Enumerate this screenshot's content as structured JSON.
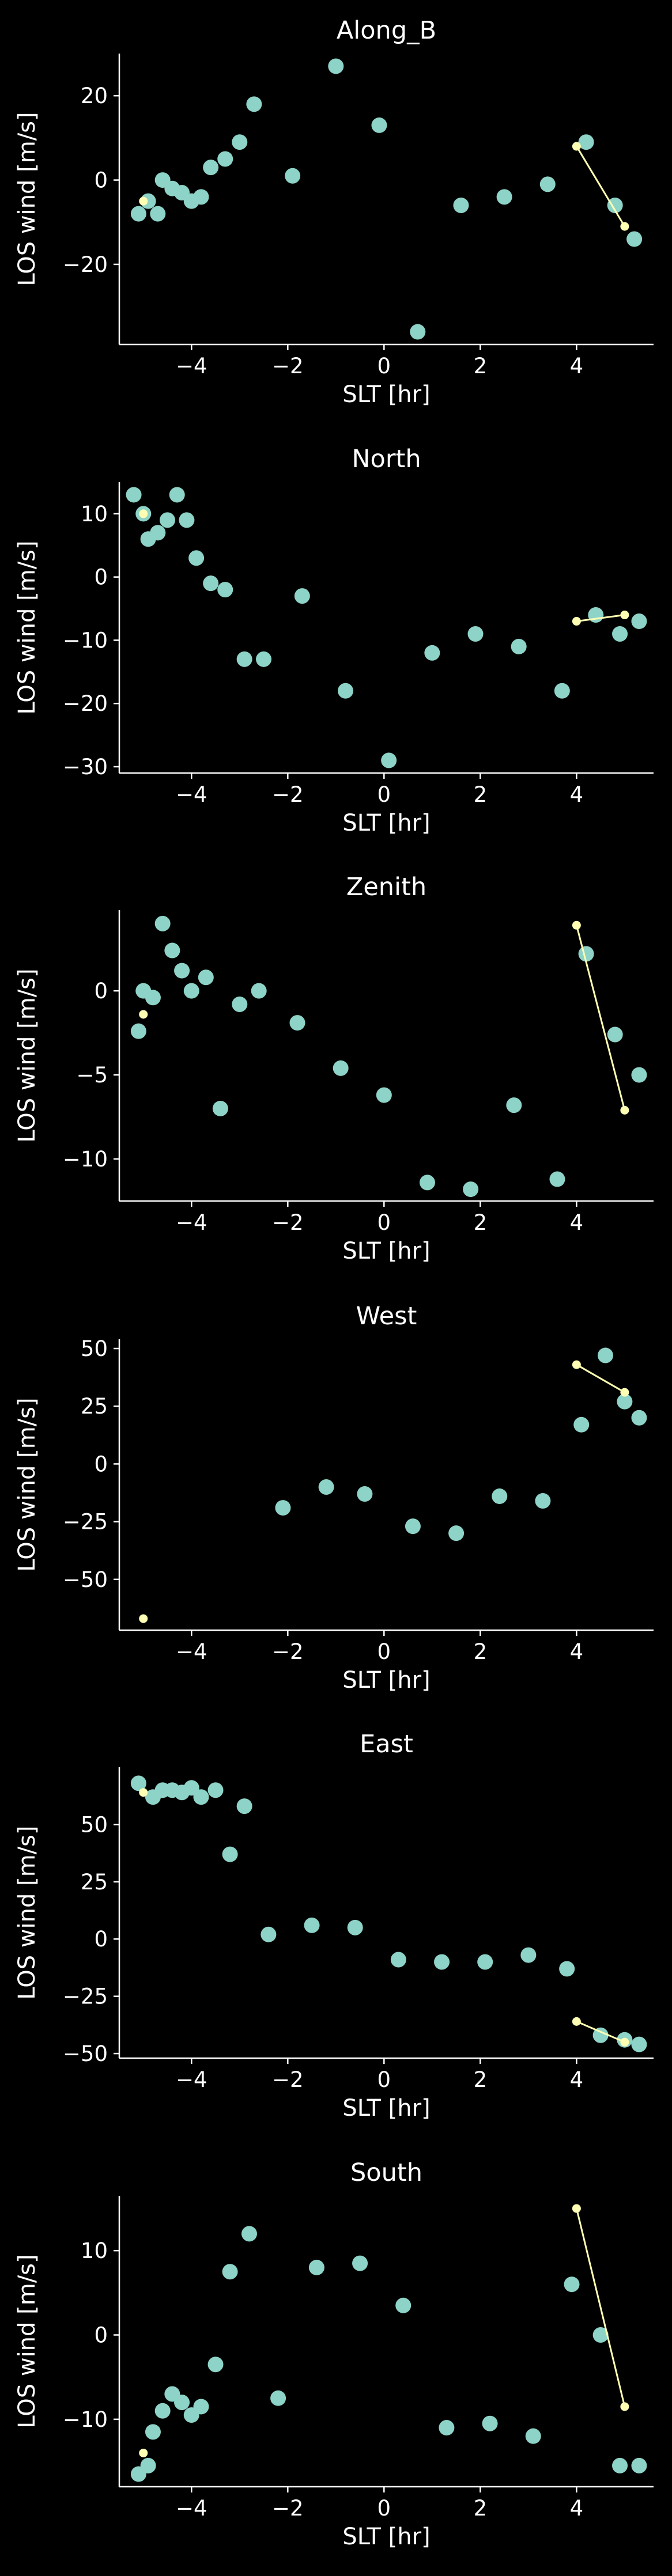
{
  "figure": {
    "background": "#000000",
    "foreground": "#ffffff",
    "scatter_color": "#8dd3c7",
    "line_color": "#ffffb3"
  },
  "chart_data": [
    {
      "type": "scatter",
      "title": "Along_B",
      "xlabel": "SLT [hr]",
      "ylabel": "LOS wind [m/s]",
      "xlim": [
        -5.5,
        5.6
      ],
      "ylim": [
        -39,
        30
      ],
      "xticks": [
        -4,
        -2,
        0,
        2,
        4
      ],
      "yticks": [
        -20,
        0,
        20
      ],
      "grid": false,
      "series": [
        {
          "kind": "scatter",
          "x": [
            -5.1,
            -4.9,
            -4.7,
            -4.6,
            -4.4,
            -4.2,
            -4.0,
            -3.8,
            -3.6,
            -3.3,
            -3.0,
            -2.7,
            -1.9,
            -1.0,
            -0.1,
            0.7,
            1.6,
            2.5,
            3.4,
            4.2,
            4.8,
            5.2
          ],
          "y": [
            -8,
            -5,
            -8,
            0,
            -2,
            -3,
            -5,
            -4,
            3,
            5,
            9,
            18,
            1,
            27,
            13,
            -36,
            -6,
            -4,
            -1,
            9,
            -6,
            -14
          ]
        },
        {
          "kind": "line",
          "x": [
            -5.0,
            4.0,
            5.0
          ],
          "y": [
            -5,
            8,
            -11
          ]
        }
      ]
    },
    {
      "type": "scatter",
      "title": "North",
      "xlabel": "SLT [hr]",
      "ylabel": "LOS wind [m/s]",
      "xlim": [
        -5.5,
        5.6
      ],
      "ylim": [
        -31,
        15
      ],
      "xticks": [
        -4,
        -2,
        0,
        2,
        4
      ],
      "yticks": [
        -30,
        -20,
        -10,
        0,
        10
      ],
      "grid": false,
      "series": [
        {
          "kind": "scatter",
          "x": [
            -5.2,
            -5.0,
            -4.9,
            -4.7,
            -4.5,
            -4.3,
            -4.1,
            -3.9,
            -3.6,
            -3.3,
            -2.9,
            -2.5,
            -1.7,
            -0.8,
            0.1,
            1.0,
            1.9,
            2.8,
            3.7,
            4.4,
            4.9,
            5.3
          ],
          "y": [
            13,
            10,
            6,
            7,
            9,
            13,
            9,
            3,
            -1,
            -2,
            -13,
            -13,
            -3,
            -18,
            -29,
            -12,
            -9,
            -11,
            -18,
            -6,
            -9,
            -7
          ]
        },
        {
          "kind": "line",
          "x": [
            -5.0,
            4.0,
            5.0
          ],
          "y": [
            10,
            -7,
            -6
          ]
        }
      ]
    },
    {
      "type": "scatter",
      "title": "Zenith",
      "xlabel": "SLT [hr]",
      "ylabel": "LOS wind [m/s]",
      "xlim": [
        -5.5,
        5.6
      ],
      "ylim": [
        -12.5,
        4.8
      ],
      "xticks": [
        -4,
        -2,
        0,
        2,
        4
      ],
      "yticks": [
        -10,
        -5,
        0
      ],
      "grid": false,
      "series": [
        {
          "kind": "scatter",
          "x": [
            -5.1,
            -5.0,
            -4.8,
            -4.6,
            -4.4,
            -4.2,
            -4.0,
            -3.7,
            -3.4,
            -3.0,
            -2.6,
            -1.8,
            -0.9,
            0.0,
            0.9,
            1.8,
            2.7,
            3.6,
            4.2,
            4.8,
            5.3
          ],
          "y": [
            -2.4,
            0,
            -0.4,
            4.0,
            2.4,
            1.2,
            0.0,
            0.8,
            -7.0,
            -0.8,
            0.0,
            -1.9,
            -4.6,
            -6.2,
            -11.4,
            -11.8,
            -6.8,
            -11.2,
            2.2,
            -2.6,
            -5.0
          ]
        },
        {
          "kind": "line",
          "x": [
            -5.0,
            4.0,
            5.0
          ],
          "y": [
            -1.4,
            3.9,
            -7.1
          ]
        }
      ]
    },
    {
      "type": "scatter",
      "title": "West",
      "xlabel": "SLT [hr]",
      "ylabel": "LOS wind [m/s]",
      "xlim": [
        -5.5,
        5.6
      ],
      "ylim": [
        -72,
        54
      ],
      "xticks": [
        -4,
        -2,
        0,
        2,
        4
      ],
      "yticks": [
        -50,
        -25,
        0,
        25,
        50
      ],
      "grid": false,
      "series": [
        {
          "kind": "scatter",
          "x": [
            -2.1,
            -1.2,
            -0.4,
            0.6,
            1.5,
            2.4,
            3.3,
            4.1,
            4.6,
            5.0,
            5.3
          ],
          "y": [
            -19,
            -10,
            -13,
            -27,
            -30,
            -14,
            -16,
            17,
            47,
            27,
            20
          ]
        },
        {
          "kind": "line",
          "x": [
            -5.0,
            4.0,
            5.0
          ],
          "y": [
            -67,
            43,
            31
          ]
        }
      ]
    },
    {
      "type": "scatter",
      "title": "East",
      "xlabel": "SLT [hr]",
      "ylabel": "LOS wind [m/s]",
      "xlim": [
        -5.5,
        5.6
      ],
      "ylim": [
        -52,
        75
      ],
      "xticks": [
        -4,
        -2,
        0,
        2,
        4
      ],
      "yticks": [
        -50,
        -25,
        0,
        25,
        50
      ],
      "grid": false,
      "series": [
        {
          "kind": "scatter",
          "x": [
            -5.1,
            -4.8,
            -4.6,
            -4.4,
            -4.2,
            -4.0,
            -3.8,
            -3.5,
            -3.2,
            -2.9,
            -2.4,
            -1.5,
            -0.6,
            0.3,
            1.2,
            2.1,
            3.0,
            3.8,
            4.5,
            5.0,
            5.3
          ],
          "y": [
            68,
            62,
            65,
            65,
            64,
            66,
            62,
            65,
            37,
            58,
            2,
            6,
            5,
            -9,
            -10,
            -10,
            -7,
            -13,
            -42,
            -44,
            -46
          ]
        },
        {
          "kind": "line",
          "x": [
            -5.0,
            4.0,
            5.0
          ],
          "y": [
            64,
            -36,
            -45
          ]
        }
      ]
    },
    {
      "type": "scatter",
      "title": "South",
      "xlabel": "SLT [hr]",
      "ylabel": "LOS wind [m/s]",
      "xlim": [
        -5.5,
        5.6
      ],
      "ylim": [
        -18,
        16.5
      ],
      "xticks": [
        -4,
        -2,
        0,
        2,
        4
      ],
      "yticks": [
        -10,
        0,
        10
      ],
      "grid": false,
      "series": [
        {
          "kind": "scatter",
          "x": [
            -5.1,
            -4.9,
            -4.8,
            -4.6,
            -4.4,
            -4.2,
            -4.0,
            -3.8,
            -3.5,
            -3.2,
            -2.8,
            -2.2,
            -1.4,
            -0.5,
            0.4,
            1.3,
            2.2,
            3.1,
            3.9,
            4.5,
            4.9,
            5.3
          ],
          "y": [
            -16.5,
            -15.5,
            -11.5,
            -9,
            -7,
            -8,
            -9.5,
            -8.5,
            -3.5,
            7.5,
            12,
            -7.5,
            8,
            8.5,
            3.5,
            -11,
            -10.5,
            -12,
            6,
            0,
            -15.5,
            -15.5
          ]
        },
        {
          "kind": "line",
          "x": [
            -5.0,
            4.0,
            5.0
          ],
          "y": [
            -14,
            15,
            -8.5
          ]
        }
      ]
    }
  ]
}
